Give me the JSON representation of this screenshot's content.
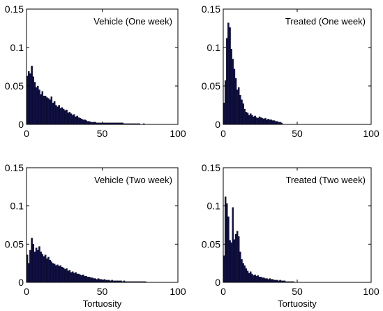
{
  "chart_data": [
    {
      "type": "bar",
      "title": "Vehicle (One week)",
      "xlabel": "",
      "ylabel": "",
      "xlim": [
        0,
        100
      ],
      "ylim": [
        0,
        0.15
      ],
      "xticks": [
        "0",
        "50",
        "100"
      ],
      "yticks": [
        "0",
        "0.05",
        "0.1",
        "0.15"
      ],
      "bar_color": "#10104a",
      "bin_width": 1,
      "x": [
        1,
        2,
        3,
        4,
        5,
        6,
        7,
        8,
        9,
        10,
        11,
        12,
        13,
        14,
        15,
        16,
        17,
        18,
        19,
        20,
        21,
        22,
        23,
        24,
        25,
        26,
        27,
        28,
        29,
        30,
        31,
        32,
        33,
        34,
        35,
        36,
        37,
        38,
        39,
        40,
        41,
        42,
        43,
        44,
        45,
        46,
        47,
        48,
        49,
        50,
        51,
        52,
        53,
        54,
        55,
        56,
        57,
        58,
        59,
        60,
        61,
        62,
        63,
        64,
        65,
        66,
        67,
        68,
        69,
        70,
        71,
        72,
        73,
        74,
        75,
        76,
        77,
        78,
        79
      ],
      "values": [
        0.063,
        0.069,
        0.066,
        0.076,
        0.062,
        0.055,
        0.048,
        0.05,
        0.045,
        0.039,
        0.043,
        0.037,
        0.037,
        0.035,
        0.034,
        0.032,
        0.036,
        0.028,
        0.03,
        0.025,
        0.023,
        0.025,
        0.021,
        0.022,
        0.02,
        0.018,
        0.019,
        0.015,
        0.016,
        0.014,
        0.012,
        0.013,
        0.01,
        0.011,
        0.009,
        0.008,
        0.007,
        0.006,
        0.006,
        0.005,
        0.004,
        0.004,
        0.003,
        0.003,
        0.003,
        0.003,
        0.002,
        0.002,
        0.002,
        0.002,
        0.002,
        0.002,
        0.002,
        0.002,
        0.002,
        0.002,
        0.002,
        0.002,
        0.002,
        0.002,
        0.002,
        0.002,
        0.002,
        0.002,
        0.001,
        0.001,
        0.001,
        0.001,
        0.001,
        0.001,
        0.001,
        0.001,
        0.001,
        0.001,
        0.001,
        0,
        0,
        0.001,
        0
      ]
    },
    {
      "type": "bar",
      "title": "Treated (One week)",
      "xlabel": "",
      "ylabel": "",
      "xlim": [
        0,
        100
      ],
      "ylim": [
        0,
        0.15
      ],
      "xticks": [
        "0",
        "50",
        "100"
      ],
      "yticks": [
        "0",
        "0.05",
        "0.1",
        "0.15"
      ],
      "bar_color": "#10104a",
      "bin_width": 1,
      "x": [
        1,
        2,
        3,
        4,
        5,
        6,
        7,
        8,
        9,
        10,
        11,
        12,
        13,
        14,
        15,
        16,
        17,
        18,
        19,
        20,
        21,
        22,
        23,
        24,
        25,
        26,
        27,
        28,
        29,
        30,
        31,
        32,
        33,
        34,
        35,
        36,
        37,
        38,
        39,
        40
      ],
      "values": [
        0.028,
        0.057,
        0.112,
        0.132,
        0.126,
        0.098,
        0.085,
        0.072,
        0.06,
        0.045,
        0.048,
        0.038,
        0.032,
        0.027,
        0.02,
        0.016,
        0.015,
        0.012,
        0.014,
        0.012,
        0.01,
        0.011,
        0.009,
        0.008,
        0.01,
        0.009,
        0.008,
        0.007,
        0.008,
        0.006,
        0.007,
        0.006,
        0.006,
        0.005,
        0.005,
        0.004,
        0.004,
        0.003,
        0.003,
        0.002
      ]
    },
    {
      "type": "bar",
      "title": "Vehicle (Two week)",
      "xlabel": "Tortuosity",
      "ylabel": "",
      "xlim": [
        0,
        100
      ],
      "ylim": [
        0,
        0.15
      ],
      "xticks": [
        "0",
        "50",
        "100"
      ],
      "yticks": [
        "0",
        "0.05",
        "0.1",
        "0.15"
      ],
      "bar_color": "#10104a",
      "bin_width": 1,
      "x": [
        1,
        2,
        3,
        4,
        5,
        6,
        7,
        8,
        9,
        10,
        11,
        12,
        13,
        14,
        15,
        16,
        17,
        18,
        19,
        20,
        21,
        22,
        23,
        24,
        25,
        26,
        27,
        28,
        29,
        30,
        31,
        32,
        33,
        34,
        35,
        36,
        37,
        38,
        39,
        40,
        41,
        42,
        43,
        44,
        45,
        46,
        47,
        48,
        49,
        50,
        51,
        52,
        53,
        54,
        55,
        56,
        57,
        58,
        59,
        60,
        61,
        62,
        63,
        64,
        65,
        66,
        67,
        68,
        69,
        70,
        71,
        72,
        73,
        74,
        75,
        76,
        77,
        78,
        79,
        80
      ],
      "values": [
        0.036,
        0.025,
        0.042,
        0.058,
        0.05,
        0.04,
        0.045,
        0.042,
        0.047,
        0.04,
        0.037,
        0.034,
        0.036,
        0.031,
        0.033,
        0.029,
        0.027,
        0.025,
        0.024,
        0.022,
        0.023,
        0.021,
        0.022,
        0.02,
        0.019,
        0.017,
        0.018,
        0.015,
        0.016,
        0.013,
        0.014,
        0.012,
        0.013,
        0.011,
        0.011,
        0.01,
        0.009,
        0.01,
        0.008,
        0.008,
        0.007,
        0.007,
        0.006,
        0.006,
        0.005,
        0.005,
        0.004,
        0.005,
        0.004,
        0.004,
        0.003,
        0.004,
        0.003,
        0.003,
        0.003,
        0.002,
        0.003,
        0.002,
        0.002,
        0.002,
        0.002,
        0.002,
        0.002,
        0.001,
        0.002,
        0.001,
        0.001,
        0.001,
        0.001,
        0.001,
        0.001,
        0.001,
        0.001,
        0.001,
        0.001,
        0.001,
        0.001,
        0.001,
        0.001,
        0
      ]
    },
    {
      "type": "bar",
      "title": "Treated (Two week)",
      "xlabel": "Tortuosity",
      "ylabel": "",
      "xlim": [
        0,
        100
      ],
      "ylim": [
        0,
        0.15
      ],
      "xticks": [
        "0",
        "50",
        "100"
      ],
      "yticks": [
        "0",
        "0.05",
        "0.1",
        "0.15"
      ],
      "bar_color": "#10104a",
      "bin_width": 1,
      "x": [
        1,
        2,
        3,
        4,
        5,
        6,
        7,
        8,
        9,
        10,
        11,
        12,
        13,
        14,
        15,
        16,
        17,
        18,
        19,
        20,
        21,
        22,
        23,
        24,
        25,
        26,
        27,
        28,
        29,
        30,
        31,
        32,
        33,
        34,
        35,
        36,
        37,
        38,
        39,
        40,
        41,
        42,
        43,
        44,
        45,
        46,
        47,
        48
      ],
      "values": [
        0.035,
        0.112,
        0.103,
        0.086,
        0.055,
        0.052,
        0.098,
        0.056,
        0.063,
        0.067,
        0.06,
        0.04,
        0.03,
        0.025,
        0.022,
        0.018,
        0.015,
        0.012,
        0.014,
        0.011,
        0.009,
        0.01,
        0.008,
        0.009,
        0.007,
        0.007,
        0.006,
        0.006,
        0.005,
        0.005,
        0.004,
        0.005,
        0.004,
        0.004,
        0.003,
        0.003,
        0.003,
        0.002,
        0.003,
        0.002,
        0.002,
        0.002,
        0.001,
        0.001,
        0.001,
        0.001,
        0.001,
        0.001
      ]
    }
  ]
}
